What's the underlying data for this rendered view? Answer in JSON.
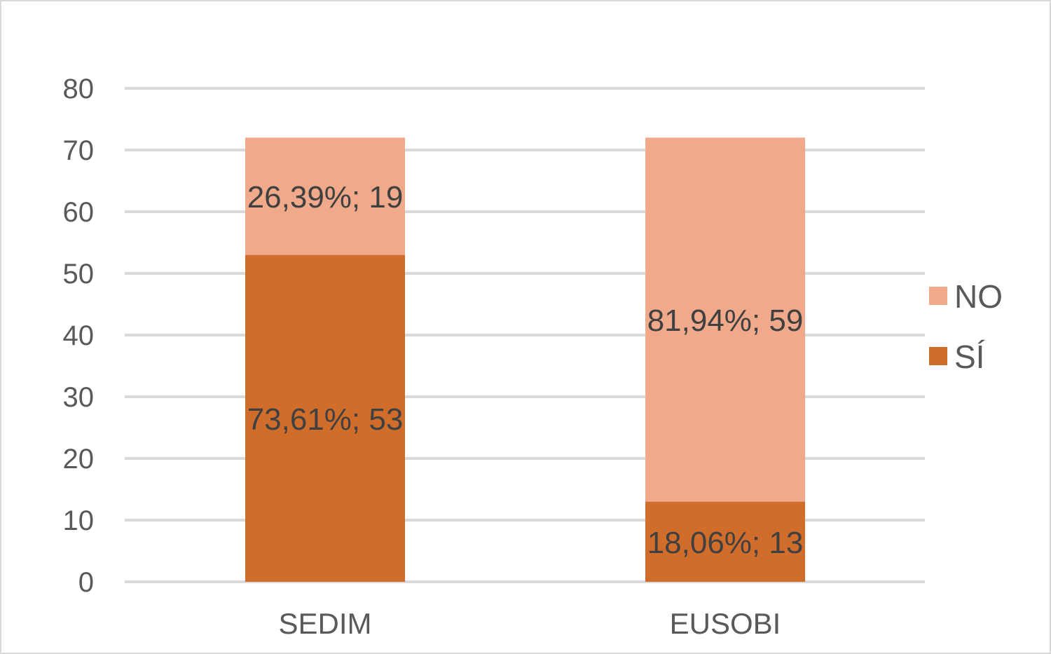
{
  "chart_data": {
    "type": "bar",
    "stacked": true,
    "categories": [
      "SEDIM",
      "EUSOBI"
    ],
    "series": [
      {
        "name": "SÍ",
        "values": [
          53,
          13
        ],
        "labels": [
          "73,61%; 53",
          "18,06%; 13"
        ],
        "color": "#d16d2b"
      },
      {
        "name": "NO",
        "values": [
          19,
          59
        ],
        "labels": [
          "26,39%; 19",
          "81,94%; 59"
        ],
        "color": "#f0a98a"
      }
    ],
    "y_ticks": [
      0,
      10,
      20,
      30,
      40,
      50,
      60,
      70,
      80
    ],
    "ylim": [
      0,
      80
    ],
    "grid": true,
    "legend_position": "right",
    "legend_order": [
      "NO",
      "SÍ"
    ],
    "title": "",
    "xlabel": "",
    "ylabel": ""
  }
}
